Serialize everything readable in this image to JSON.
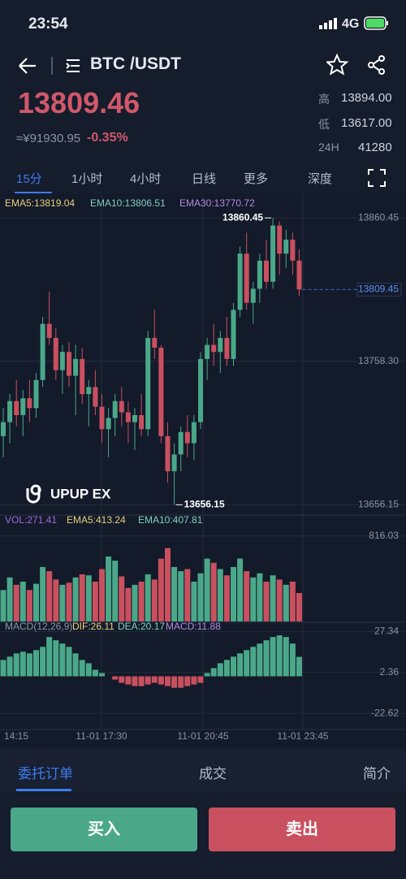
{
  "status_bar": {
    "time": "23:54",
    "network": "4G"
  },
  "header": {
    "pair": "BTC /USDT"
  },
  "ticker": {
    "price": "13809.46",
    "cny": "≈¥91930.95",
    "change": "-0.35%",
    "high_label": "高",
    "high": "13894.00",
    "low_label": "低",
    "low": "13617.00",
    "volume_label": "24H",
    "volume": "41280"
  },
  "intervals": [
    "15分",
    "1小时",
    "4小时",
    "日线",
    "更多",
    "深度"
  ],
  "chart": {
    "type": "candlestick",
    "legend": [
      "EMA5:13819.04",
      "EMA10:13806.51",
      "EMA30:13770.72"
    ],
    "candles": [
      [
        13705,
        13725,
        13690,
        13715
      ],
      [
        13715,
        13735,
        13700,
        13730
      ],
      [
        13730,
        13745,
        13712,
        13720
      ],
      [
        13720,
        13738,
        13705,
        13732
      ],
      [
        13732,
        13745,
        13715,
        13725
      ],
      [
        13725,
        13750,
        13718,
        13745
      ],
      [
        13745,
        13790,
        13740,
        13785
      ],
      [
        13785,
        13808,
        13770,
        13775
      ],
      [
        13775,
        13782,
        13745,
        13752
      ],
      [
        13752,
        13770,
        13735,
        13765
      ],
      [
        13765,
        13772,
        13740,
        13748
      ],
      [
        13748,
        13770,
        13720,
        13760
      ],
      [
        13760,
        13768,
        13728,
        13735
      ],
      [
        13735,
        13745,
        13712,
        13740
      ],
      [
        13740,
        13752,
        13720,
        13726
      ],
      [
        13726,
        13735,
        13700,
        13710
      ],
      [
        13710,
        13725,
        13690,
        13718
      ],
      [
        13718,
        13735,
        13705,
        13730
      ],
      [
        13730,
        13740,
        13712,
        13722
      ],
      [
        13722,
        13730,
        13700,
        13715
      ],
      [
        13715,
        13725,
        13695,
        13720
      ],
      [
        13720,
        13735,
        13705,
        13710
      ],
      [
        13710,
        13780,
        13705,
        13775
      ],
      [
        13775,
        13795,
        13760,
        13768
      ],
      [
        13768,
        13770,
        13700,
        13705
      ],
      [
        13705,
        13715,
        13672,
        13680
      ],
      [
        13680,
        13700,
        13656.15,
        13692
      ],
      [
        13692,
        13712,
        13680,
        13708
      ],
      [
        13708,
        13720,
        13690,
        13700
      ],
      [
        13700,
        13720,
        13688,
        13715
      ],
      [
        13715,
        13765,
        13710,
        13760
      ],
      [
        13760,
        13775,
        13745,
        13770
      ],
      [
        13770,
        13785,
        13755,
        13765
      ],
      [
        13765,
        13780,
        13750,
        13775
      ],
      [
        13775,
        13790,
        13755,
        13760
      ],
      [
        13760,
        13800,
        13755,
        13795
      ],
      [
        13795,
        13840,
        13790,
        13835
      ],
      [
        13835,
        13850,
        13795,
        13800
      ],
      [
        13800,
        13815,
        13785,
        13810
      ],
      [
        13810,
        13835,
        13800,
        13830
      ],
      [
        13830,
        13845,
        13810,
        13815
      ],
      [
        13815,
        13860.45,
        13810,
        13855
      ],
      [
        13855,
        13858,
        13820,
        13835
      ],
      [
        13835,
        13852,
        13825,
        13845
      ],
      [
        13845,
        13850,
        13820,
        13830
      ],
      [
        13830,
        13838,
        13805,
        13809.45
      ]
    ],
    "ylim": [
      13650,
      13871
    ],
    "yticks": [
      13860.45,
      {
        "value": 13758.3,
        "label": "13758.30"
      },
      13656.15
    ],
    "high_marker": 13860.45,
    "low_marker": 13656.15,
    "last_price": 13809.45,
    "rising_color": "#4aa889",
    "falling_color": "#c9505f",
    "watermark": "UPUP EX"
  },
  "volume": {
    "legend": [
      "VOL:271.41",
      "EMA5:413.24",
      "EMA10:407.81"
    ],
    "values": [
      300,
      420,
      350,
      380,
      300,
      360,
      520,
      480,
      400,
      350,
      370,
      420,
      450,
      440,
      380,
      500,
      620,
      580,
      430,
      320,
      350,
      380,
      450,
      400,
      600,
      700,
      520,
      480,
      500,
      380,
      460,
      600,
      560,
      500,
      440,
      520,
      600,
      480,
      420,
      460,
      380,
      440,
      400,
      350,
      380,
      271.41
    ],
    "ylim": [
      0,
      1000
    ],
    "yticks": [
      816.03
    ]
  },
  "macd": {
    "legend": [
      "MACD(12,26,9)",
      "DIF:26.11",
      "DEA:20.17",
      "MACD:11.88"
    ],
    "values": [
      10,
      12,
      14,
      15,
      14,
      16,
      18,
      24,
      22,
      20,
      18,
      14,
      10,
      8,
      4,
      2,
      0,
      -2,
      -4,
      -5,
      -6,
      -6,
      -5,
      -4,
      -5,
      -6,
      -7,
      -7,
      -6,
      -5,
      -4,
      2,
      5,
      8,
      10,
      12,
      14,
      16,
      18,
      20,
      22,
      24,
      25,
      24,
      20,
      11.88
    ],
    "ylim": [
      -31,
      32
    ],
    "yticks": [
      27.34,
      2.36,
      -22.62
    ]
  },
  "time_labels": [
    "14:15",
    "11-01 17:30",
    "11-01 20:45",
    "11-01 23:45"
  ],
  "bottom_tabs": [
    "委托订单",
    "成交",
    "简介"
  ],
  "buttons": {
    "buy": "买入",
    "sell": "卖出"
  }
}
